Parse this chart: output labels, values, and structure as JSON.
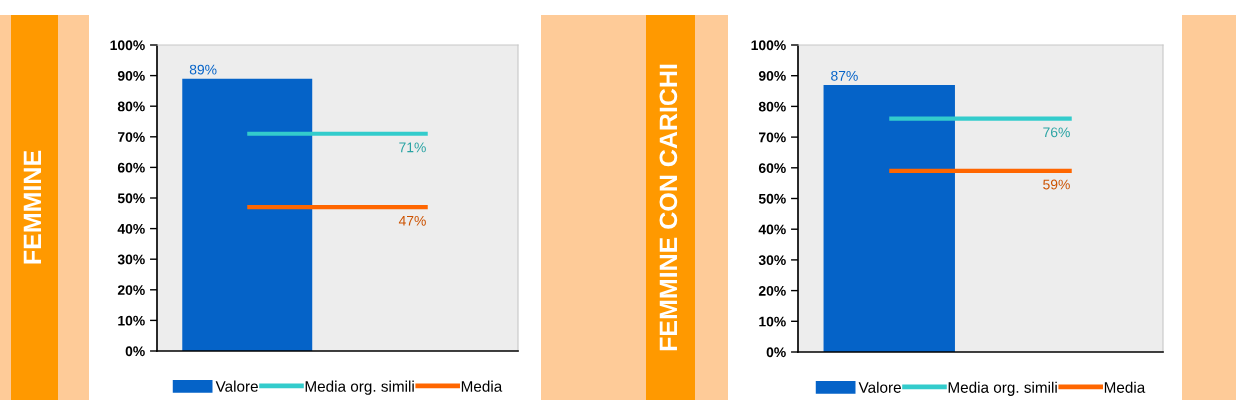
{
  "chart_data": [
    {
      "type": "bar",
      "title": "FEMMINE",
      "categories": [
        null,
        null
      ],
      "series": [
        {
          "name": "Valore",
          "color": "#0563c8",
          "values": [
            89,
            null
          ],
          "value_labels": [
            "89%",
            null
          ]
        },
        {
          "name": "Media org. simili",
          "type": "line",
          "color": "#33cccc",
          "values": [
            71,
            71
          ],
          "value_labels": [
            null,
            "71%"
          ]
        },
        {
          "name": "Media",
          "type": "line",
          "color": "#ff6600",
          "values": [
            47,
            47
          ],
          "value_labels": [
            null,
            "47%"
          ]
        }
      ],
      "ylim": [
        0,
        100
      ],
      "yticks": [
        {
          "value": 0,
          "label": "0%"
        },
        {
          "value": 10,
          "label": "10%"
        },
        {
          "value": 20,
          "label": "20%"
        },
        {
          "value": 30,
          "label": "30%"
        },
        {
          "value": 40,
          "label": "40%"
        },
        {
          "value": 50,
          "label": "50%"
        },
        {
          "value": 60,
          "label": "60%"
        },
        {
          "value": 70,
          "label": "70%"
        },
        {
          "value": 80,
          "label": "80%"
        },
        {
          "value": 90,
          "label": "90%"
        },
        {
          "value": 100,
          "label": "100%"
        }
      ],
      "tick_labels": "y",
      "legend": "bottom"
    },
    {
      "type": "bar",
      "title": "FEMMINE CON CARICHI",
      "categories": [
        null,
        null
      ],
      "series": [
        {
          "name": "Valore",
          "color": "#0563c8",
          "values": [
            87,
            null
          ],
          "value_labels": [
            "87%",
            null
          ]
        },
        {
          "name": "Media org. simili",
          "type": "line",
          "color": "#33cccc",
          "values": [
            76,
            76
          ],
          "value_labels": [
            null,
            "76%"
          ]
        },
        {
          "name": "Media",
          "type": "line",
          "color": "#ff6600",
          "values": [
            59,
            59
          ],
          "value_labels": [
            null,
            "59%"
          ]
        }
      ],
      "ylim": [
        0,
        100
      ],
      "yticks": [
        {
          "value": 0,
          "label": "0%"
        },
        {
          "value": 10,
          "label": "10%"
        },
        {
          "value": 20,
          "label": "20%"
        },
        {
          "value": 30,
          "label": "30%"
        },
        {
          "value": 40,
          "label": "40%"
        },
        {
          "value": 50,
          "label": "50%"
        },
        {
          "value": 60,
          "label": "60%"
        },
        {
          "value": 70,
          "label": "70%"
        },
        {
          "value": 80,
          "label": "80%"
        },
        {
          "value": 90,
          "label": "90%"
        },
        {
          "value": 100,
          "label": "100%"
        }
      ],
      "tick_labels": "y",
      "legend": "bottom"
    }
  ]
}
